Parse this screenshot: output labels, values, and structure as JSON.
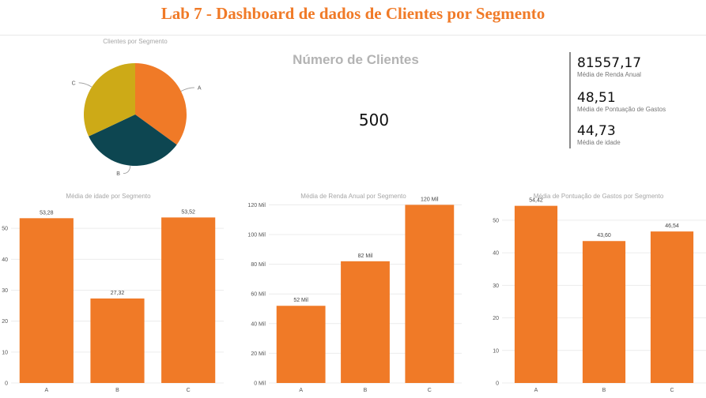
{
  "header": {
    "title": "Lab 7 - Dashboard de dados de Clientes por Segmento"
  },
  "card": {
    "title": "Número de Clientes",
    "value": "500"
  },
  "multi_card": [
    {
      "value": "81557,17",
      "label": "Média de Renda Anual"
    },
    {
      "value": "48,51",
      "label": "Média de Pontuação de Gastos"
    },
    {
      "value": "44,73",
      "label": "Média de idade"
    }
  ],
  "colors": {
    "accent": "#f07a27",
    "pie_A": "#f07a27",
    "pie_B": "#0d4651",
    "pie_C": "#cdaa17"
  },
  "chart_data": [
    {
      "type": "pie",
      "title": "Clientes por Segmento",
      "categories": [
        "A",
        "B",
        "C"
      ],
      "values": [
        35,
        33,
        32
      ],
      "legend": "none"
    },
    {
      "type": "bar",
      "title": "Média de idade por Segmento",
      "categories": [
        "A",
        "B",
        "C"
      ],
      "values": [
        53.28,
        27.32,
        53.52
      ],
      "value_labels": [
        "53,28",
        "27,32",
        "53,52"
      ],
      "ylim": [
        0,
        60
      ],
      "yticks": [
        0,
        10,
        20,
        30,
        40,
        50
      ],
      "ytick_labels": [
        "0",
        "10",
        "20",
        "30",
        "40",
        "50"
      ],
      "grid": true
    },
    {
      "type": "bar",
      "title": "Média de Renda Anual por Segmento",
      "categories": [
        "A",
        "B",
        "C"
      ],
      "values": [
        52000,
        82000,
        120000
      ],
      "value_labels": [
        "52 Mil",
        "82 Mil",
        "120 Mil"
      ],
      "ylim": [
        0,
        125000
      ],
      "yticks": [
        0,
        20000,
        40000,
        60000,
        80000,
        100000,
        120000
      ],
      "ytick_labels": [
        "0 Mil",
        "20 Mil",
        "40 Mil",
        "60 Mil",
        "80 Mil",
        "100 Mil",
        "120 Mil"
      ],
      "grid": true
    },
    {
      "type": "bar",
      "title": "Média de Pontuação de Gastos por Segmento",
      "categories": [
        "A",
        "B",
        "C"
      ],
      "values": [
        54.42,
        43.6,
        46.54
      ],
      "value_labels": [
        "54,42",
        "43,60",
        "46,54"
      ],
      "ylim": [
        0,
        57
      ],
      "yticks": [
        0,
        10,
        20,
        30,
        40,
        50
      ],
      "ytick_labels": [
        "0",
        "10",
        "20",
        "30",
        "40",
        "50"
      ],
      "grid": true
    }
  ]
}
